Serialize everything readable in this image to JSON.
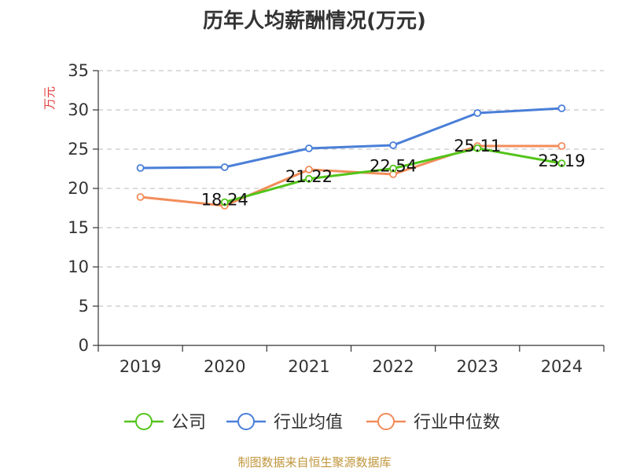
{
  "chart_data": {
    "type": "line",
    "title": "历年人均薪酬情况(万元)",
    "ylabel": "万元",
    "xlabel": "",
    "categories": [
      "2019",
      "2020",
      "2021",
      "2022",
      "2023",
      "2024"
    ],
    "ylim": [
      0,
      35
    ],
    "yticks": [
      0,
      5,
      10,
      15,
      20,
      25,
      30,
      35
    ],
    "grid": true,
    "legend_position": "bottom",
    "series": [
      {
        "name": "公司",
        "color": "#52c41a",
        "values": [
          null,
          18.24,
          21.22,
          22.54,
          25.11,
          23.19
        ],
        "show_labels": true
      },
      {
        "name": "行业均值",
        "color": "#4a7fd8",
        "values": [
          22.6,
          22.7,
          25.1,
          25.5,
          29.6,
          30.2
        ],
        "show_labels": false
      },
      {
        "name": "行业中位数",
        "color": "#f28c5a",
        "values": [
          18.9,
          17.8,
          22.4,
          21.8,
          25.4,
          25.4
        ],
        "show_labels": false
      }
    ]
  },
  "source": "制图数据来自恒生聚源数据库"
}
